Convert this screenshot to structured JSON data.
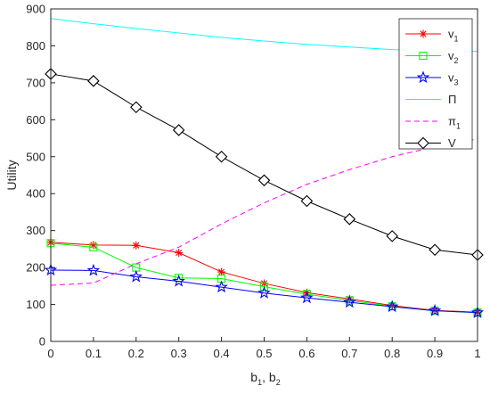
{
  "chart_data": {
    "type": "line",
    "xlabel": "b",
    "xlabel_sub1": "1",
    "xlabel_mid": ", b",
    "xlabel_sub2": "2",
    "ylabel": "Utility",
    "xlim": [
      0,
      1
    ],
    "ylim": [
      0,
      900
    ],
    "x_ticks": [
      0,
      0.1,
      0.2,
      0.3,
      0.4,
      0.5,
      0.6,
      0.7,
      0.8,
      0.9,
      1
    ],
    "y_ticks": [
      0,
      100,
      200,
      300,
      400,
      500,
      600,
      700,
      800,
      900
    ],
    "x": [
      0,
      0.1,
      0.2,
      0.3,
      0.4,
      0.5,
      0.6,
      0.7,
      0.8,
      0.9,
      1
    ],
    "grid": false,
    "legend_position": "top-right",
    "series": [
      {
        "name": "v",
        "name_sub": "1",
        "color": "#ff0000",
        "marker": "asterisk",
        "dash": "solid",
        "values": [
          268,
          261,
          260,
          240,
          188,
          157,
          132,
          115,
          97,
          84,
          79
        ]
      },
      {
        "name": "v",
        "name_sub": "2",
        "color": "#00ff00",
        "marker": "square",
        "dash": "solid",
        "values": [
          266,
          255,
          200,
          172,
          170,
          148,
          128,
          111,
          95,
          83,
          78
        ]
      },
      {
        "name": "v",
        "name_sub": "3",
        "color": "#0000ff",
        "marker": "star",
        "dash": "solid",
        "values": [
          193,
          192,
          175,
          163,
          147,
          131,
          118,
          106,
          94,
          83,
          78
        ]
      },
      {
        "name": "Π",
        "name_sub": "",
        "color": "#00ffff",
        "marker": "none",
        "dash": "solid",
        "values": [
          874,
          860,
          847,
          835,
          823,
          813,
          804,
          797,
          790,
          786,
          785
        ]
      },
      {
        "name": "π",
        "name_sub": "1",
        "color": "#ff00ff",
        "marker": "none",
        "dash": "dashed",
        "values": [
          152,
          158,
          210,
          255,
          318,
          375,
          425,
          465,
          500,
          527,
          548
        ]
      },
      {
        "name": "V",
        "name_sub": "",
        "color": "#000000",
        "marker": "diamond",
        "dash": "solid",
        "values": [
          724,
          705,
          634,
          572,
          500,
          436,
          380,
          331,
          285,
          248,
          234
        ]
      }
    ]
  }
}
